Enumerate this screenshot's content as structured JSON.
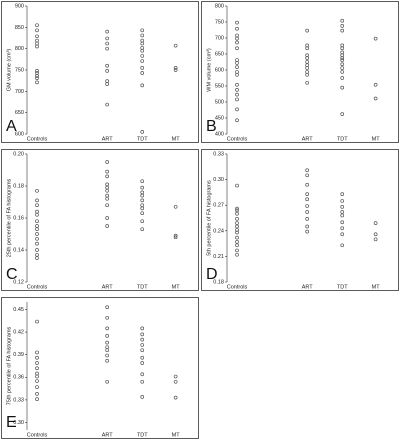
{
  "chart_data": [
    {
      "type": "scatter",
      "label": "A",
      "ylabel": "GM volume (cm³)",
      "categories": [
        "Controls",
        "ART",
        "TDT",
        "MT"
      ],
      "values": [
        [
          855,
          843,
          829,
          819,
          812,
          805,
          748,
          743,
          736,
          731,
          721
        ],
        [
          840,
          824,
          812,
          800,
          760,
          748,
          724,
          717,
          669
        ],
        [
          843,
          831,
          819,
          812,
          802,
          795,
          783,
          771,
          755,
          743,
          714,
          605
        ],
        [
          807,
          755,
          750
        ]
      ],
      "ylim": [
        600,
        900
      ],
      "yticks": [
        600,
        650,
        700,
        750,
        800,
        850,
        900
      ]
    },
    {
      "type": "scatter",
      "label": "B",
      "ylabel": "WM volume (cm³)",
      "categories": [
        "Controls",
        "ART",
        "TDT",
        "MT"
      ],
      "values": [
        [
          748,
          729,
          708,
          698,
          686,
          668,
          631,
          622,
          609,
          594,
          585,
          554,
          538,
          523,
          508,
          477,
          443
        ],
        [
          723,
          677,
          668,
          646,
          637,
          625,
          615,
          606,
          594,
          585,
          560
        ],
        [
          754,
          738,
          723,
          677,
          668,
          655,
          646,
          637,
          631,
          618,
          606,
          594,
          575,
          545,
          462
        ],
        [
          698,
          554,
          511
        ]
      ],
      "ylim": [
        400,
        800
      ],
      "yticks": [
        400,
        450,
        500,
        550,
        600,
        650,
        700,
        750,
        800
      ]
    },
    {
      "type": "scatter",
      "label": "C",
      "ylabel": "25th percentile of FA histograms",
      "categories": [
        "Controls",
        "ART",
        "TDT",
        "MT"
      ],
      "values": [
        [
          0.177,
          0.171,
          0.168,
          0.164,
          0.162,
          0.158,
          0.155,
          0.153,
          0.15,
          0.147,
          0.144,
          0.14,
          0.137,
          0.135
        ],
        [
          0.195,
          0.189,
          0.186,
          0.181,
          0.179,
          0.177,
          0.174,
          0.172,
          0.168,
          0.16,
          0.155
        ],
        [
          0.183,
          0.179,
          0.176,
          0.174,
          0.171,
          0.168,
          0.166,
          0.163,
          0.158,
          0.153
        ],
        [
          0.167,
          0.149,
          0.148
        ]
      ],
      "ylim": [
        0.12,
        0.2
      ],
      "yticks": [
        0.12,
        0.14,
        0.16,
        0.18,
        {
          "value": 0.2,
          "label": "0.20"
        }
      ]
    },
    {
      "type": "scatter",
      "label": "D",
      "ylabel": "5th percentile of FA histograms",
      "categories": [
        "Controls",
        "ART",
        "TDT",
        "MT"
      ],
      "values": [
        [
          0.293,
          0.266,
          0.264,
          0.26,
          0.254,
          0.249,
          0.245,
          0.241,
          0.238,
          0.232,
          0.227,
          0.223,
          0.217,
          0.212
        ],
        [
          0.311,
          0.305,
          0.294,
          0.283,
          0.277,
          0.269,
          0.262,
          0.254,
          0.245,
          0.239
        ],
        [
          0.283,
          0.275,
          0.268,
          0.262,
          0.258,
          0.25,
          0.243,
          0.236,
          0.223
        ],
        [
          0.249,
          0.236,
          0.23
        ]
      ],
      "ylim": [
        0.18,
        0.33
      ],
      "yticks": [
        0.18,
        0.21,
        0.24,
        0.27,
        {
          "value": 0.3,
          "label": "0.30"
        },
        0.33
      ]
    },
    {
      "type": "scatter",
      "label": "E",
      "ylabel": "75th percentile of FA histograms",
      "categories": [
        "Controls",
        "ART",
        "TDT",
        "MT"
      ],
      "values": [
        [
          0.434,
          0.393,
          0.386,
          0.379,
          0.372,
          0.365,
          0.361,
          0.355,
          0.347,
          0.338,
          0.331
        ],
        [
          0.453,
          0.439,
          0.425,
          0.415,
          0.406,
          0.4,
          0.396,
          0.389,
          0.382,
          0.354
        ],
        [
          0.425,
          0.417,
          0.41,
          0.403,
          0.396,
          0.386,
          0.379,
          0.364,
          0.354,
          0.334
        ],
        [
          0.361,
          0.354,
          0.333
        ]
      ],
      "ylim": [
        0.29,
        0.46
      ],
      "yticks": [
        {
          "value": 0.3,
          "label": "0.30"
        },
        0.33,
        0.36,
        0.39,
        0.42,
        0.45
      ]
    }
  ]
}
